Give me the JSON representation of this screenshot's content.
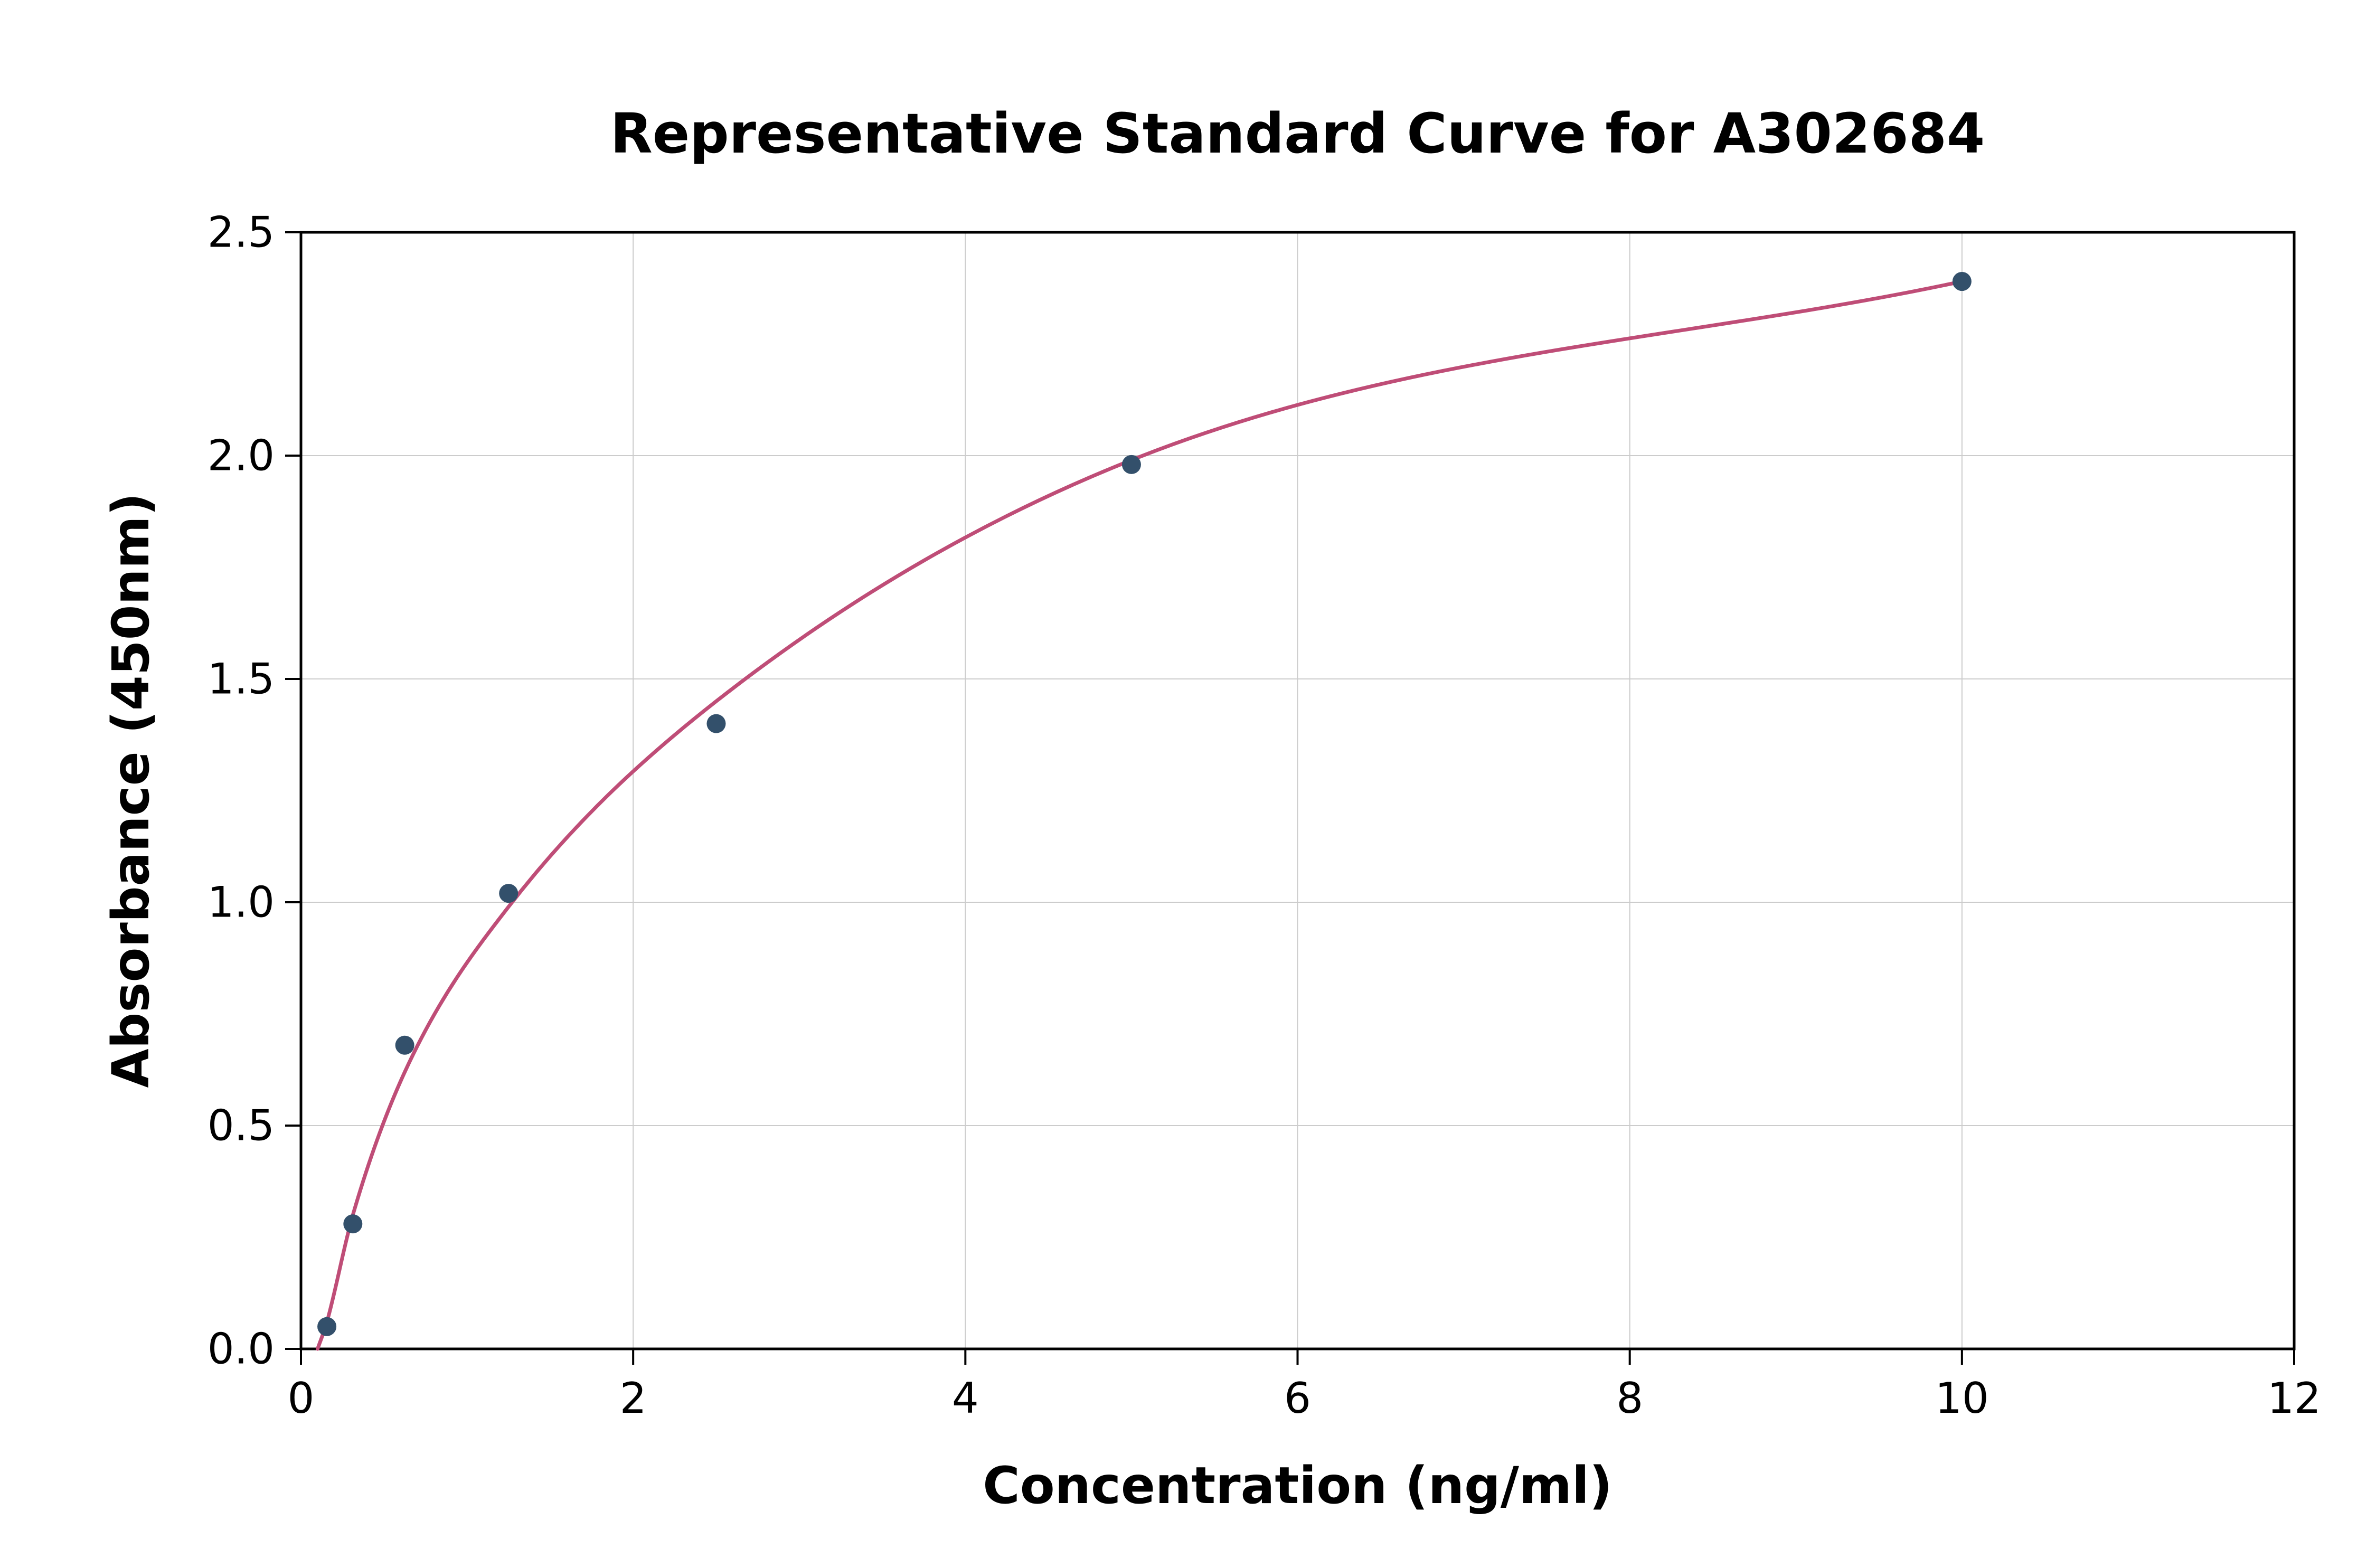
{
  "chart_data": {
    "type": "scatter",
    "title": "Representative Standard Curve for A302684",
    "xlabel": "Concentration (ng/ml)",
    "ylabel": "Absorbance (450nm)",
    "xlim": [
      0,
      12
    ],
    "ylim": [
      0,
      2.5
    ],
    "x_ticks": [
      0,
      2,
      4,
      6,
      8,
      10,
      12
    ],
    "x_tick_labels": [
      "0",
      "2",
      "4",
      "6",
      "8",
      "10",
      "12"
    ],
    "y_ticks": [
      0,
      0.5,
      1.0,
      1.5,
      2.0,
      2.5
    ],
    "y_tick_labels": [
      "0.0",
      "0.5",
      "1.0",
      "1.5",
      "2.0",
      "2.5"
    ],
    "grid": true,
    "legend": "none",
    "points": [
      {
        "x": 0.156,
        "y": 0.05
      },
      {
        "x": 0.3125,
        "y": 0.28
      },
      {
        "x": 0.625,
        "y": 0.68
      },
      {
        "x": 1.25,
        "y": 1.02
      },
      {
        "x": 2.5,
        "y": 1.4
      },
      {
        "x": 5.0,
        "y": 1.98
      },
      {
        "x": 10.0,
        "y": 2.39
      }
    ],
    "fit_curve": [
      {
        "x": 0.1,
        "y": 0.0
      },
      {
        "x": 0.156,
        "y": 0.06
      },
      {
        "x": 0.3125,
        "y": 0.3
      },
      {
        "x": 0.625,
        "y": 0.62
      },
      {
        "x": 1.25,
        "y": 0.99
      },
      {
        "x": 2.5,
        "y": 1.45
      },
      {
        "x": 5.0,
        "y": 1.99
      },
      {
        "x": 10.0,
        "y": 2.39
      }
    ],
    "colors": {
      "curve": "#bf4d77",
      "points": "#33506b",
      "grid": "#cccccc",
      "axis": "#000000",
      "background": "#ffffff"
    }
  }
}
